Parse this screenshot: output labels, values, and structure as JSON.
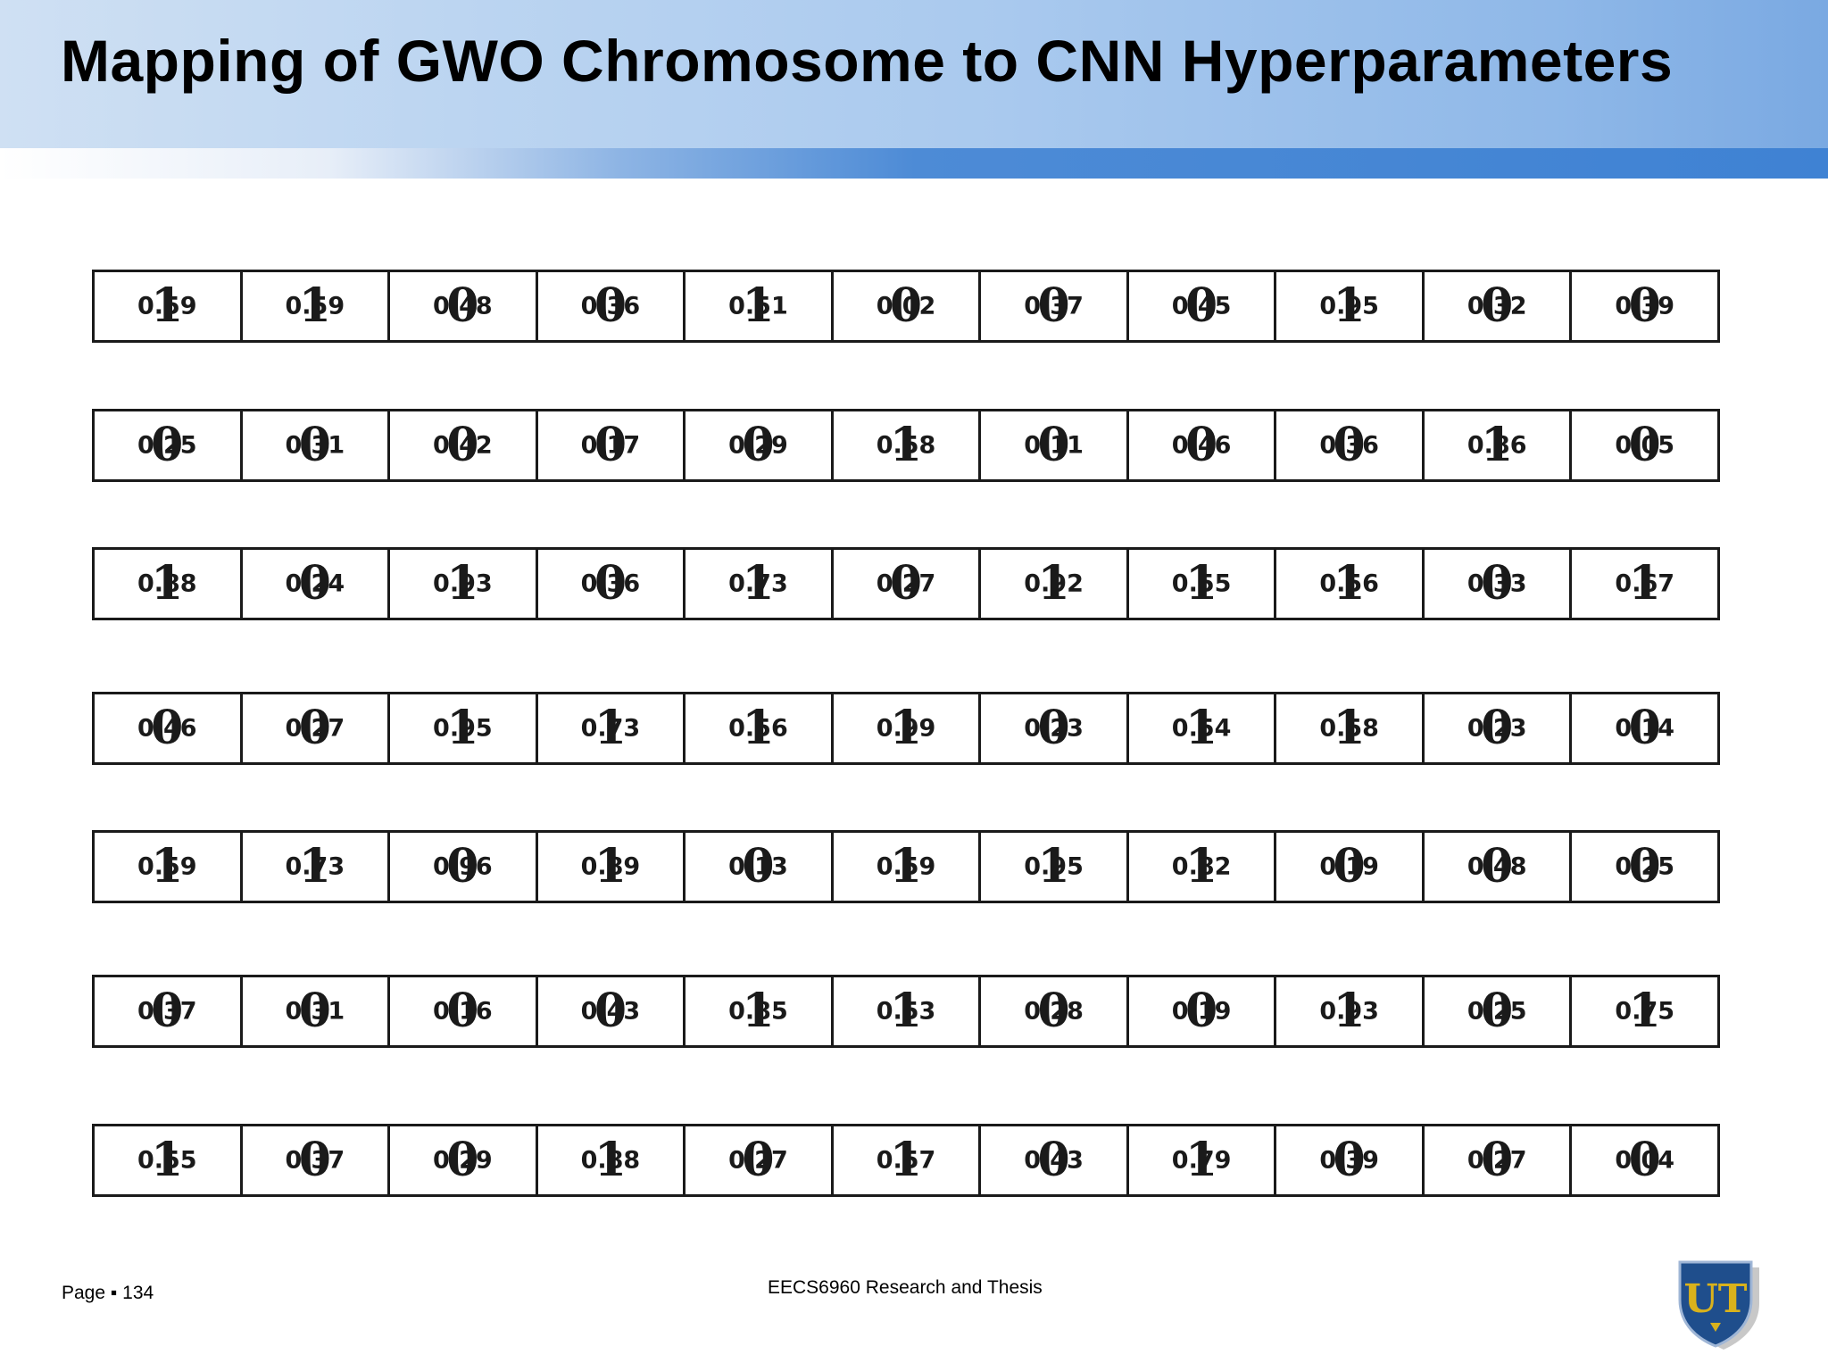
{
  "title": "Mapping of GWO Chromosome to CNN Hyperparameters",
  "rows": [
    {
      "values": [
        "0.59",
        "0.59",
        "0.48",
        "0.36",
        "0.51",
        "0.02",
        "0.37",
        "0.45",
        "0.95",
        "0.32",
        "0.39"
      ],
      "bits": [
        "1",
        "1",
        "0",
        "0",
        "1",
        "0",
        "0",
        "0",
        "1",
        "0",
        "0"
      ]
    },
    {
      "values": [
        "0.25",
        "0.31",
        "0.42",
        "0.17",
        "0.29",
        "0.58",
        "0.11",
        "0.46",
        "0.36",
        "0.86",
        "0.05"
      ],
      "bits": [
        "0",
        "0",
        "0",
        "0",
        "0",
        "1",
        "0",
        "0",
        "0",
        "1",
        "0"
      ]
    },
    {
      "values": [
        "0.88",
        "0.24",
        "0.93",
        "0.36",
        "0.73",
        "0.27",
        "0.92",
        "0.55",
        "0.56",
        "0.33",
        "0.67"
      ],
      "bits": [
        "1",
        "0",
        "1",
        "0",
        "1",
        "0",
        "1",
        "1",
        "1",
        "0",
        "1"
      ]
    },
    {
      "values": [
        "0.46",
        "0.27",
        "0.95",
        "0.73",
        "0.56",
        "0.99",
        "0.23",
        "0.54",
        "0.58",
        "0.23",
        "0.14"
      ],
      "bits": [
        "0",
        "0",
        "1",
        "1",
        "1",
        "1",
        "0",
        "1",
        "1",
        "0",
        "0"
      ]
    },
    {
      "values": [
        "0.59",
        "0.73",
        "0.96",
        "0.89",
        "0.13",
        "0.59",
        "0.95",
        "0.82",
        "0.19",
        "0.48",
        "0.25"
      ],
      "bits": [
        "1",
        "1",
        "0",
        "1",
        "0",
        "1",
        "1",
        "1",
        "0",
        "0",
        "0"
      ]
    },
    {
      "values": [
        "0.37",
        "0.31",
        "0.16",
        "0.43",
        "0.85",
        "0.53",
        "0.28",
        "0.19",
        "0.93",
        "0.25",
        "0.75"
      ],
      "bits": [
        "0",
        "0",
        "0",
        "0",
        "1",
        "1",
        "0",
        "0",
        "1",
        "0",
        "1"
      ]
    },
    {
      "values": [
        "0.55",
        "0.37",
        "0.29",
        "0.88",
        "0.27",
        "0.57",
        "0.43",
        "0.79",
        "0.39",
        "0.27",
        "0.04"
      ],
      "bits": [
        "1",
        "0",
        "0",
        "1",
        "0",
        "1",
        "0",
        "1",
        "0",
        "0",
        "0"
      ]
    }
  ],
  "footer": {
    "page": "Page ▪ 134",
    "course": "EECS6960 Research and Thesis"
  },
  "logo": {
    "text": "UT",
    "shield_color": "#1f4e8c",
    "accent_color": "#d9b21c"
  },
  "colors": {
    "header_blue": "#4d8bd6",
    "header_light": "#cfe0f3"
  }
}
